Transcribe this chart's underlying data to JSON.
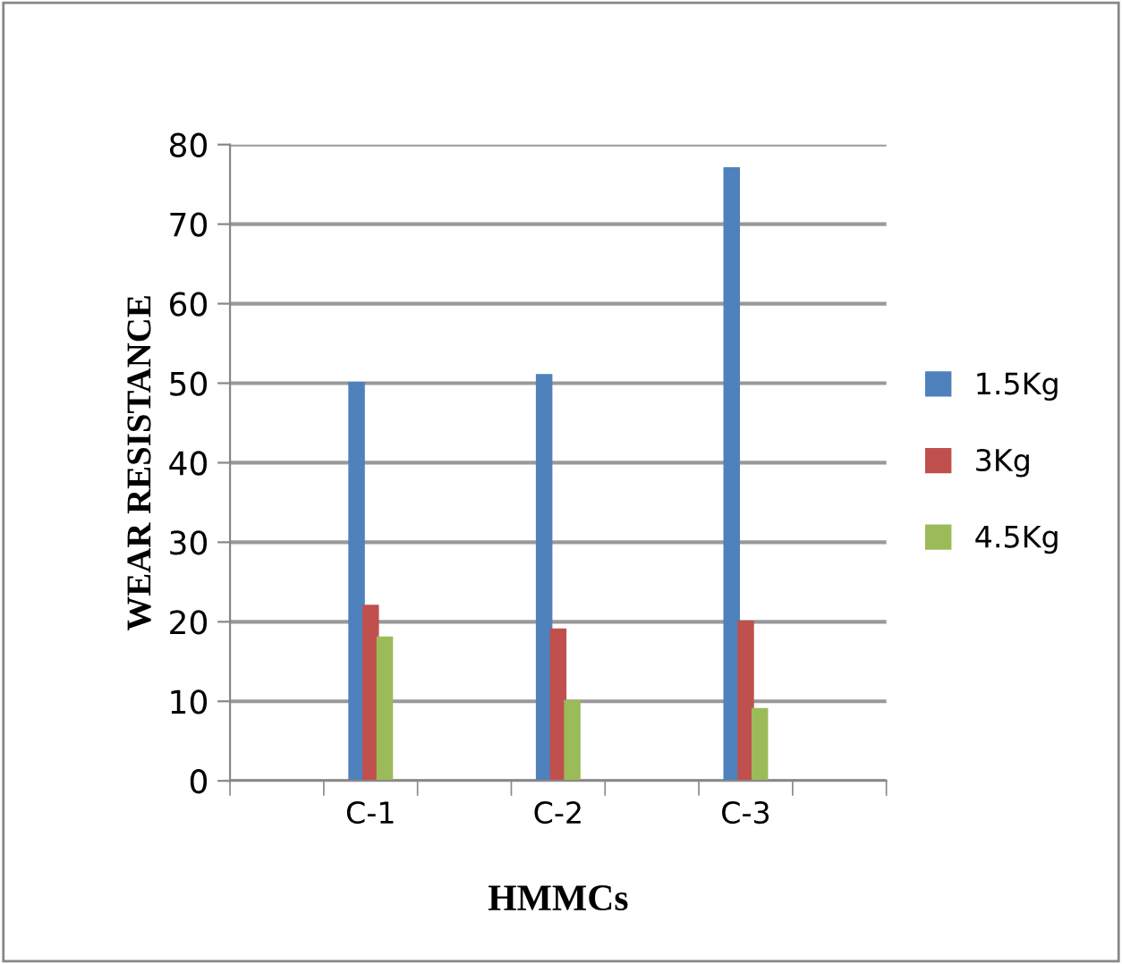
{
  "chart_data": {
    "type": "bar",
    "xlabel": "HMMCs",
    "ylabel": "WEAR RESISTANCE",
    "categories": [
      null,
      "C-1",
      null,
      "C-2",
      null,
      "C-3",
      null
    ],
    "series": [
      {
        "name": "1.5Kg",
        "color": "#4f81bd",
        "values": [
          null,
          50,
          null,
          51,
          null,
          77,
          null
        ]
      },
      {
        "name": "3Kg",
        "color": "#c0504d",
        "values": [
          null,
          22,
          null,
          19,
          null,
          20,
          null
        ]
      },
      {
        "name": "4.5Kg",
        "color": "#9bbb59",
        "values": [
          null,
          18,
          null,
          10,
          null,
          9,
          null
        ]
      }
    ],
    "ylim": [
      0,
      80
    ],
    "yticks": [
      0,
      10,
      20,
      30,
      40,
      50,
      60,
      70,
      80
    ],
    "grid": "y",
    "legend": "right"
  }
}
